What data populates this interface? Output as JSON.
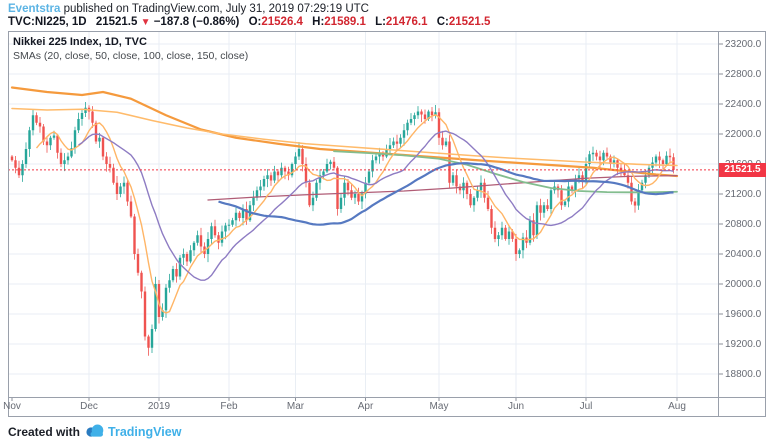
{
  "header": {
    "user": "Eventstra",
    "published": " published on TradingView.com, July 31, 2019 07:29:19 UTC",
    "symbol": "TVC:NI225, 1D",
    "last_price": "21521.5",
    "down_arrow": "▼",
    "change": "−187.8 (−0.86%)",
    "o_label": "O:",
    "o_value": "21526.4",
    "h_label": "H:",
    "h_value": "21589.1",
    "l_label": "L:",
    "l_value": "21476.1",
    "c_label": "C:",
    "c_value": "21521.5"
  },
  "legend": {
    "title": "Nikkei 225 Index, 1D, TVC",
    "subtitle": "SMAs (20, close, 50, close, 100, close, 150, close)"
  },
  "footer": {
    "created": "Created with",
    "brand": "TradingView",
    "logo": "tradingview-cloud-logo"
  },
  "colors": {
    "candle_up": "#26a69a",
    "candle_down": "#ef5350",
    "grid": "#e9eef4",
    "frame": "#9aa0ab",
    "tick_dash": "#8b8f99",
    "axis_text": "#676b74",
    "accent_red": "#f23645",
    "header_red": "#d22630",
    "user_blue": "#5cb4e4",
    "brand_blue": "#3fb0e8"
  },
  "chart_data": {
    "type": "candlestick",
    "title": "Nikkei 225 Index, 1D, TVC",
    "indicator": "SMAs (20, close, 50, close, 100, close, 150, close)",
    "ylim": [
      18800,
      23200
    ],
    "ytick_step": 400,
    "yticks": [
      23200.0,
      22800.0,
      22400.0,
      22000.0,
      21600.0,
      21200.0,
      20800.0,
      20400.0,
      20000.0,
      19600.0,
      19200.0,
      18800.0
    ],
    "last_price": 21521.5,
    "last_price_label": "21521.5",
    "months": [
      {
        "label": "Nov",
        "idx": 0
      },
      {
        "label": "Dec",
        "idx": 22
      },
      {
        "label": "2019",
        "idx": 42
      },
      {
        "label": "Feb",
        "idx": 62
      },
      {
        "label": "Mar",
        "idx": 81
      },
      {
        "label": "Apr",
        "idx": 101
      },
      {
        "label": "May",
        "idx": 122
      },
      {
        "label": "Jun",
        "idx": 144
      },
      {
        "label": "Jul",
        "idx": 164
      },
      {
        "label": "Aug",
        "idx": 190
      }
    ],
    "open_first": 21700,
    "closes": [
      21650,
      21550,
      21450,
      21600,
      21800,
      22050,
      22250,
      22150,
      22100,
      21900,
      21850,
      21950,
      21980,
      21750,
      21600,
      21650,
      21700,
      21810,
      22050,
      22200,
      22280,
      22350,
      22300,
      22150,
      21900,
      21950,
      21700,
      21600,
      21550,
      21350,
      21200,
      21300,
      21350,
      21100,
      20900,
      20400,
      20150,
      19900,
      19300,
      19150,
      19400,
      20000,
      19560,
      19650,
      19950,
      20050,
      20200,
      20100,
      20350,
      20400,
      20300,
      20450,
      20550,
      20650,
      20500,
      20400,
      20600,
      20770,
      20650,
      20550,
      20700,
      20780,
      20790,
      20850,
      20950,
      20880,
      21000,
      20850,
      21050,
      21150,
      21250,
      21300,
      21400,
      21450,
      21380,
      21500,
      21450,
      21550,
      21500,
      21450,
      21600,
      21700,
      21800,
      21600,
      21350,
      21050,
      21150,
      21350,
      21450,
      21500,
      21600,
      21630,
      21550,
      21000,
      21150,
      21350,
      21250,
      21150,
      21200,
      21100,
      21205,
      21350,
      21500,
      21650,
      21700,
      21750,
      21700,
      21800,
      21850,
      21900,
      21870,
      21950,
      22050,
      22150,
      22200,
      22250,
      22300,
      22260,
      22200,
      22300,
      22250,
      22290,
      21950,
      21850,
      21900,
      21350,
      21450,
      21300,
      21250,
      21350,
      21200,
      21050,
      21150,
      21250,
      21350,
      21150,
      21000,
      20750,
      20600,
      20650,
      20750,
      20600,
      20700,
      20601,
      20400,
      20450,
      20620,
      20550,
      20850,
      20650,
      21050,
      20950,
      21050,
      21000,
      21250,
      21300,
      21250,
      21050,
      21100,
      21300,
      21250,
      21400,
      21450,
      21380,
      21600,
      21730,
      21750,
      21700,
      21650,
      21750,
      21700,
      21600,
      21650,
      21550,
      21500,
      21450,
      21350,
      21100,
      21046,
      21250,
      21350,
      21450,
      21550,
      21620,
      21700,
      21650,
      21600,
      21710,
      21690,
      21521.5
    ],
    "computed_smas": [
      {
        "name": "sma-fast-orange",
        "period": 8,
        "color": "#ffb566",
        "width": 1.4
      },
      {
        "name": "sma-20-violet",
        "period": 20,
        "color": "#8e7cc3",
        "width": 1.4
      },
      {
        "name": "sma-60-blue",
        "period": 60,
        "color": "#5679c1",
        "width": 2.2
      }
    ],
    "lines": [
      {
        "name": "sma-slow-orange-1",
        "color": "#f59a3d",
        "width": 2.2,
        "points": [
          [
            0,
            22620
          ],
          [
            10,
            22560
          ],
          [
            20,
            22520
          ],
          [
            26,
            22560
          ],
          [
            34,
            22470
          ],
          [
            44,
            22250
          ],
          [
            54,
            22060
          ],
          [
            64,
            21950
          ],
          [
            76,
            21870
          ],
          [
            88,
            21800
          ],
          [
            100,
            21760
          ],
          [
            112,
            21720
          ],
          [
            124,
            21680
          ],
          [
            136,
            21640
          ],
          [
            146,
            21610
          ],
          [
            156,
            21580
          ],
          [
            166,
            21550
          ],
          [
            176,
            21500
          ],
          [
            184,
            21460
          ],
          [
            190,
            21440
          ]
        ]
      },
      {
        "name": "sma-slow-orange-2",
        "color": "#ffbb6b",
        "width": 1.6,
        "points": [
          [
            0,
            22340
          ],
          [
            10,
            22320
          ],
          [
            20,
            22330
          ],
          [
            30,
            22290
          ],
          [
            40,
            22180
          ],
          [
            50,
            22080
          ],
          [
            60,
            22000
          ],
          [
            72,
            21930
          ],
          [
            84,
            21870
          ],
          [
            96,
            21830
          ],
          [
            108,
            21790
          ],
          [
            120,
            21750
          ],
          [
            132,
            21710
          ],
          [
            142,
            21680
          ],
          [
            152,
            21655
          ],
          [
            162,
            21630
          ],
          [
            172,
            21610
          ],
          [
            182,
            21590
          ],
          [
            190,
            21580
          ]
        ]
      },
      {
        "name": "sma-maroon",
        "color": "#b05c76",
        "width": 1.3,
        "points": [
          [
            56,
            21120
          ],
          [
            70,
            21160
          ],
          [
            84,
            21190
          ],
          [
            98,
            21215
          ],
          [
            112,
            21240
          ],
          [
            126,
            21280
          ],
          [
            140,
            21330
          ],
          [
            152,
            21370
          ],
          [
            164,
            21410
          ],
          [
            176,
            21435
          ],
          [
            190,
            21445
          ]
        ]
      },
      {
        "name": "sma-green",
        "color": "#83bd8e",
        "width": 1.8,
        "points": [
          [
            92,
            21770
          ],
          [
            102,
            21745
          ],
          [
            112,
            21715
          ],
          [
            122,
            21670
          ],
          [
            130,
            21590
          ],
          [
            138,
            21470
          ],
          [
            146,
            21360
          ],
          [
            154,
            21280
          ],
          [
            162,
            21240
          ],
          [
            170,
            21225
          ],
          [
            180,
            21222
          ],
          [
            190,
            21230
          ]
        ]
      }
    ]
  }
}
